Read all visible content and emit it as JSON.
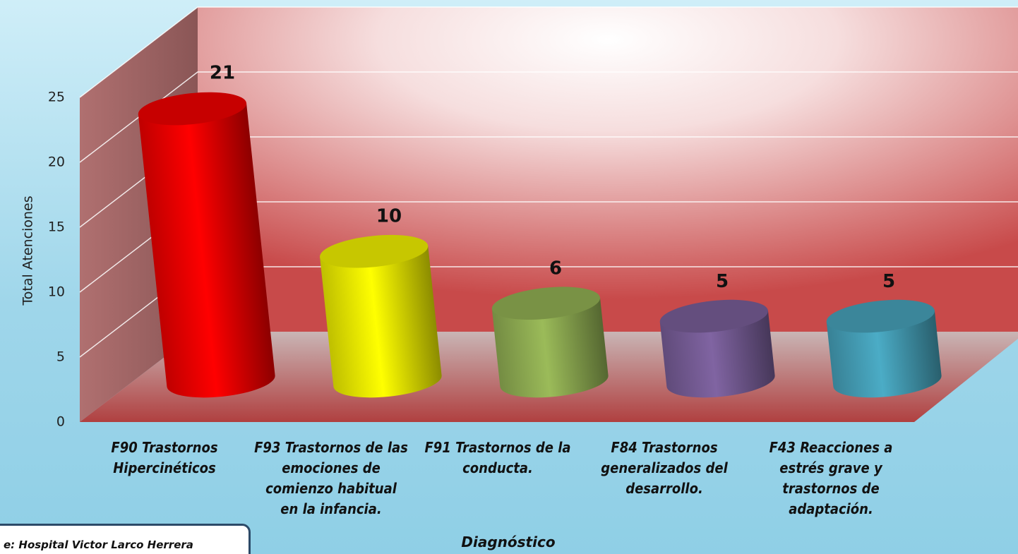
{
  "chart_data": {
    "type": "bar",
    "categories": [
      "F90 Trastornos\nHipercinéticos",
      "F93 Trastornos de las\nemociones de\ncomienzo habitual\nen la infancia.",
      "F91 Trastornos de la\nconducta.",
      "F84 Trastornos\ngeneralizados del\ndesarrollo.",
      "F43 Reacciones a\nestrés grave y\ntrastornos de\nadaptación."
    ],
    "values": [
      21,
      10,
      6,
      5,
      5
    ],
    "colors": [
      "#ff0000",
      "#ffff00",
      "#9bbb59",
      "#8064a2",
      "#4bacc6"
    ],
    "ylim": [
      0,
      25
    ],
    "yticks": [
      0,
      5,
      10,
      15,
      20,
      25
    ],
    "grid": true,
    "y_label": "Total Atenciones",
    "x_label": "Diagnóstico",
    "source": "e:  Hospital Victor Larco Herrera"
  }
}
